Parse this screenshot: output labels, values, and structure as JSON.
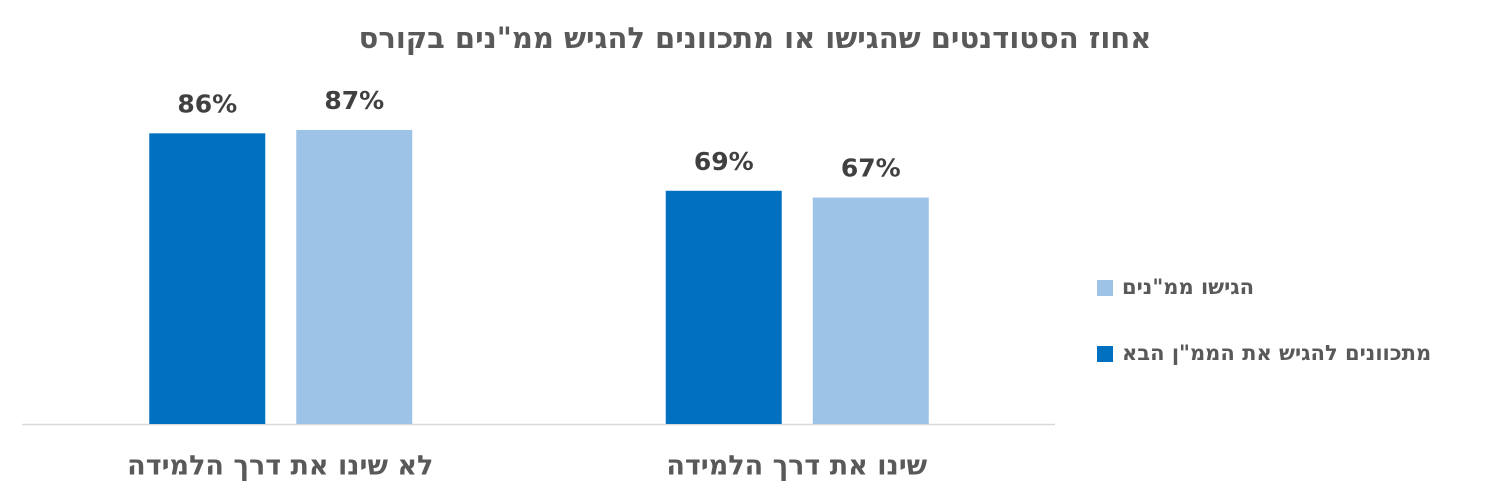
{
  "chart_data": {
    "type": "bar",
    "title": "אחוז הסטודנטים שהגישו או מתכוונים להגיש ממ\"נים בקורס",
    "categories": [
      "לא שינו את דרך הלמידה",
      "שינו את דרך הלמידה"
    ],
    "series": [
      {
        "name": "מתכוונים להגיש את הממ\"ן הבא",
        "color": "#0070c0",
        "values": [
          86,
          69
        ],
        "value_labels": [
          "86%",
          "69%"
        ]
      },
      {
        "name": "הגישו ממ\"נים",
        "color": "#9dc3e6",
        "values": [
          87,
          67
        ],
        "value_labels": [
          "87%",
          "67%"
        ]
      }
    ],
    "ylim": [
      0,
      100
    ]
  }
}
